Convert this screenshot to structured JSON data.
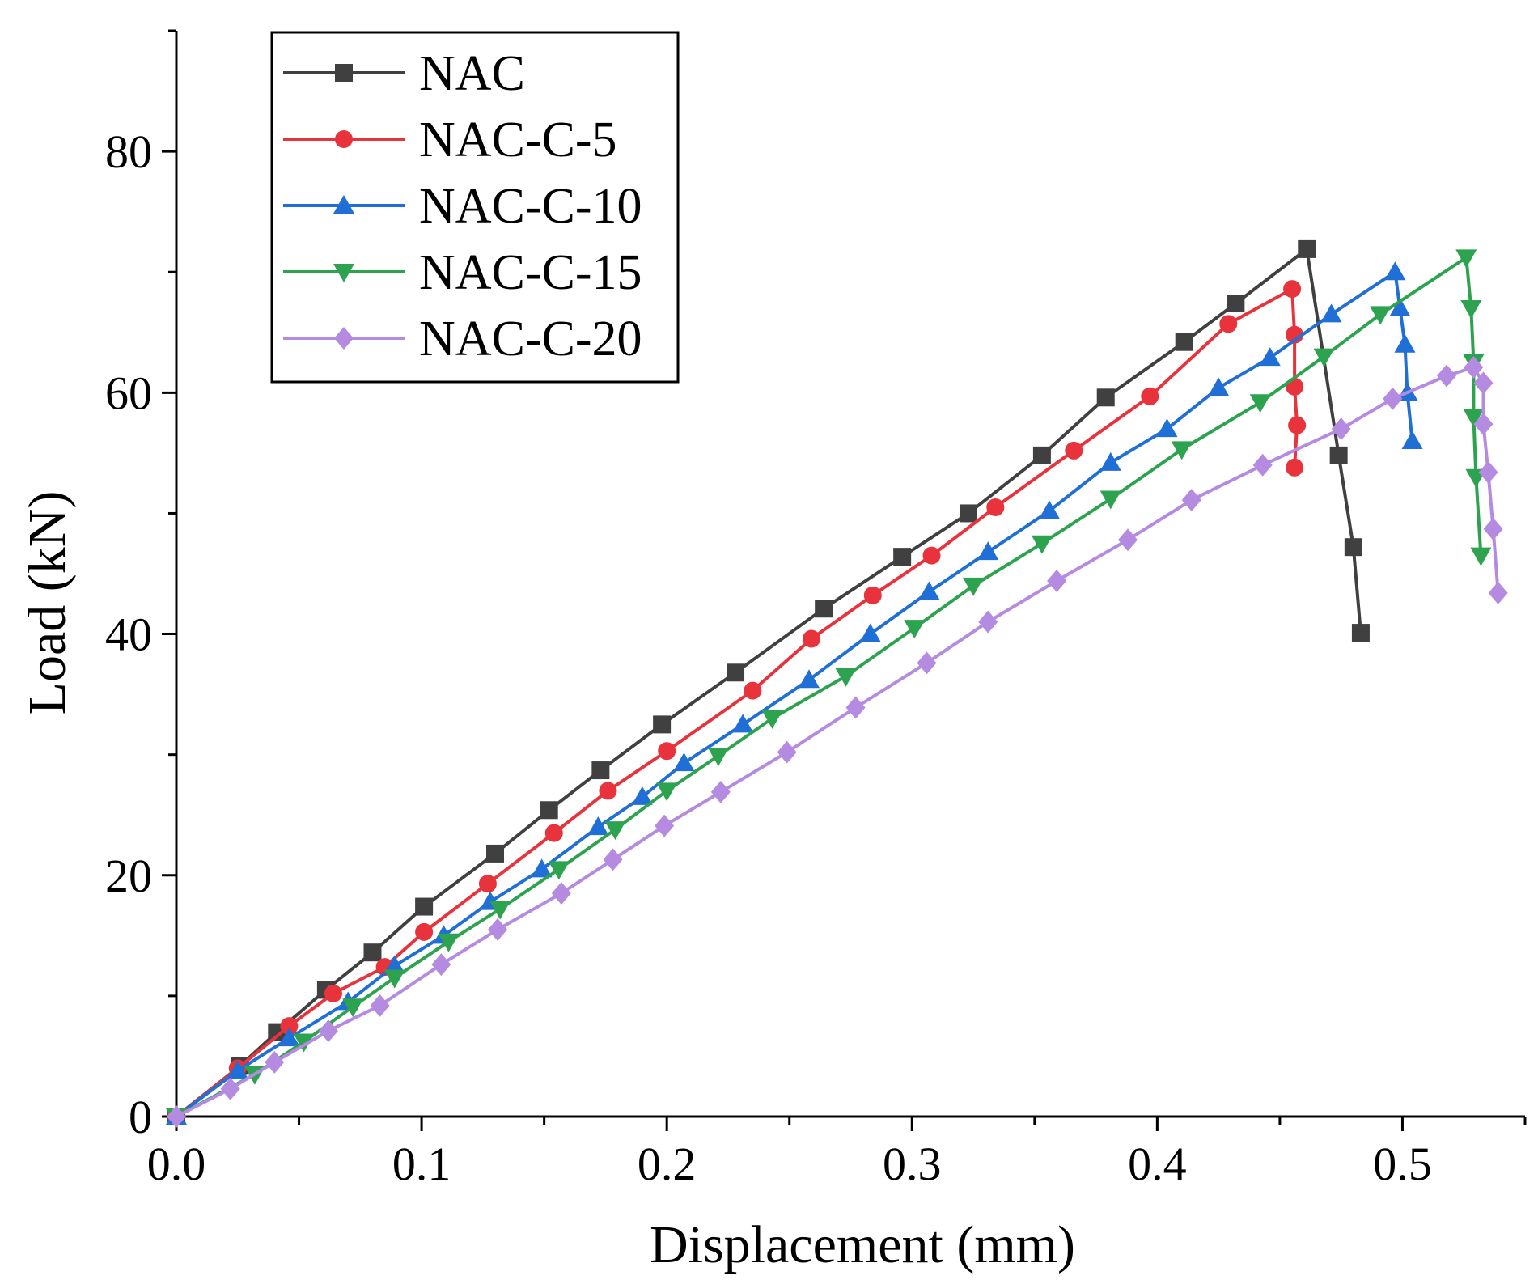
{
  "chart_data": {
    "type": "line",
    "xlabel": "Displacement (mm)",
    "ylabel": "Load (kN)",
    "xlim": [
      0.0,
      0.55
    ],
    "ylim": [
      0,
      90
    ],
    "x_ticks": [
      "0.0",
      "0.1",
      "0.2",
      "0.3",
      "0.4",
      "0.5"
    ],
    "y_ticks": [
      "0",
      "20",
      "40",
      "60",
      "80"
    ],
    "grid": false,
    "legend_position": "top-left",
    "series": [
      {
        "name": "NAC",
        "color": "#404040",
        "marker": "square",
        "points": [
          [
            0.0,
            0.0
          ],
          [
            0.026,
            4.2
          ],
          [
            0.041,
            7.0
          ],
          [
            0.061,
            10.5
          ],
          [
            0.08,
            13.6
          ],
          [
            0.101,
            17.4
          ],
          [
            0.13,
            21.8
          ],
          [
            0.152,
            25.4
          ],
          [
            0.173,
            28.7
          ],
          [
            0.198,
            32.5
          ],
          [
            0.228,
            36.8
          ],
          [
            0.264,
            42.1
          ],
          [
            0.296,
            46.4
          ],
          [
            0.323,
            50.0
          ],
          [
            0.353,
            54.8
          ],
          [
            0.379,
            59.6
          ],
          [
            0.411,
            64.2
          ],
          [
            0.432,
            67.4
          ],
          [
            0.461,
            71.9
          ],
          [
            0.474,
            54.8
          ],
          [
            0.48,
            47.2
          ],
          [
            0.483,
            40.1
          ]
        ]
      },
      {
        "name": "NAC-C-5",
        "color": "#e8323c",
        "marker": "circle",
        "points": [
          [
            0.0,
            0.0
          ],
          [
            0.025,
            4.0
          ],
          [
            0.046,
            7.5
          ],
          [
            0.064,
            10.2
          ],
          [
            0.085,
            12.4
          ],
          [
            0.101,
            15.3
          ],
          [
            0.127,
            19.3
          ],
          [
            0.154,
            23.5
          ],
          [
            0.176,
            27.0
          ],
          [
            0.2,
            30.3
          ],
          [
            0.235,
            35.3
          ],
          [
            0.259,
            39.6
          ],
          [
            0.284,
            43.2
          ],
          [
            0.308,
            46.5
          ],
          [
            0.334,
            50.5
          ],
          [
            0.366,
            55.2
          ],
          [
            0.397,
            59.7
          ],
          [
            0.429,
            65.7
          ],
          [
            0.455,
            68.6
          ],
          [
            0.456,
            64.8
          ],
          [
            0.456,
            60.5
          ],
          [
            0.457,
            57.3
          ],
          [
            0.456,
            53.8
          ]
        ]
      },
      {
        "name": "NAC-C-10",
        "color": "#1f6fd6",
        "marker": "triangle-up",
        "points": [
          [
            0.0,
            0.0
          ],
          [
            0.025,
            3.8
          ],
          [
            0.046,
            6.5
          ],
          [
            0.07,
            9.5
          ],
          [
            0.089,
            12.5
          ],
          [
            0.109,
            15.0
          ],
          [
            0.128,
            17.8
          ],
          [
            0.149,
            20.5
          ],
          [
            0.172,
            24.0
          ],
          [
            0.19,
            26.5
          ],
          [
            0.207,
            29.3
          ],
          [
            0.231,
            32.5
          ],
          [
            0.258,
            36.2
          ],
          [
            0.283,
            40.0
          ],
          [
            0.307,
            43.5
          ],
          [
            0.331,
            46.8
          ],
          [
            0.356,
            50.2
          ],
          [
            0.381,
            54.2
          ],
          [
            0.404,
            57.0
          ],
          [
            0.425,
            60.4
          ],
          [
            0.446,
            62.9
          ],
          [
            0.471,
            66.5
          ],
          [
            0.497,
            70.0
          ],
          [
            0.499,
            67.0
          ],
          [
            0.501,
            64.0
          ],
          [
            0.502,
            60.0
          ],
          [
            0.504,
            56.0
          ]
        ]
      },
      {
        "name": "NAC-C-15",
        "color": "#2da34f",
        "marker": "triangle-down",
        "points": [
          [
            0.0,
            0.0
          ],
          [
            0.032,
            3.5
          ],
          [
            0.052,
            6.2
          ],
          [
            0.072,
            9.1
          ],
          [
            0.089,
            11.5
          ],
          [
            0.111,
            14.5
          ],
          [
            0.132,
            17.2
          ],
          [
            0.156,
            20.5
          ],
          [
            0.179,
            23.8
          ],
          [
            0.2,
            27.0
          ],
          [
            0.221,
            29.9
          ],
          [
            0.243,
            33.0
          ],
          [
            0.273,
            36.5
          ],
          [
            0.301,
            40.5
          ],
          [
            0.325,
            44.0
          ],
          [
            0.353,
            47.5
          ],
          [
            0.381,
            51.2
          ],
          [
            0.41,
            55.3
          ],
          [
            0.442,
            59.2
          ],
          [
            0.468,
            63.0
          ],
          [
            0.491,
            66.5
          ],
          [
            0.526,
            71.2
          ],
          [
            0.528,
            67.0
          ],
          [
            0.529,
            62.5
          ],
          [
            0.529,
            58.0
          ],
          [
            0.53,
            53.0
          ],
          [
            0.532,
            46.5
          ]
        ]
      },
      {
        "name": "NAC-C-20",
        "color": "#b48be0",
        "marker": "diamond",
        "points": [
          [
            0.0,
            0.0
          ],
          [
            0.022,
            2.3
          ],
          [
            0.04,
            4.5
          ],
          [
            0.062,
            7.1
          ],
          [
            0.083,
            9.2
          ],
          [
            0.108,
            12.6
          ],
          [
            0.131,
            15.5
          ],
          [
            0.157,
            18.5
          ],
          [
            0.178,
            21.3
          ],
          [
            0.199,
            24.1
          ],
          [
            0.222,
            26.9
          ],
          [
            0.249,
            30.2
          ],
          [
            0.277,
            33.9
          ],
          [
            0.306,
            37.6
          ],
          [
            0.331,
            41.0
          ],
          [
            0.359,
            44.4
          ],
          [
            0.388,
            47.8
          ],
          [
            0.414,
            51.1
          ],
          [
            0.443,
            54.0
          ],
          [
            0.475,
            57.0
          ],
          [
            0.496,
            59.5
          ],
          [
            0.518,
            61.4
          ],
          [
            0.529,
            62.1
          ],
          [
            0.533,
            60.8
          ],
          [
            0.533,
            57.4
          ],
          [
            0.535,
            53.4
          ],
          [
            0.537,
            48.7
          ],
          [
            0.539,
            43.4
          ]
        ]
      }
    ]
  }
}
